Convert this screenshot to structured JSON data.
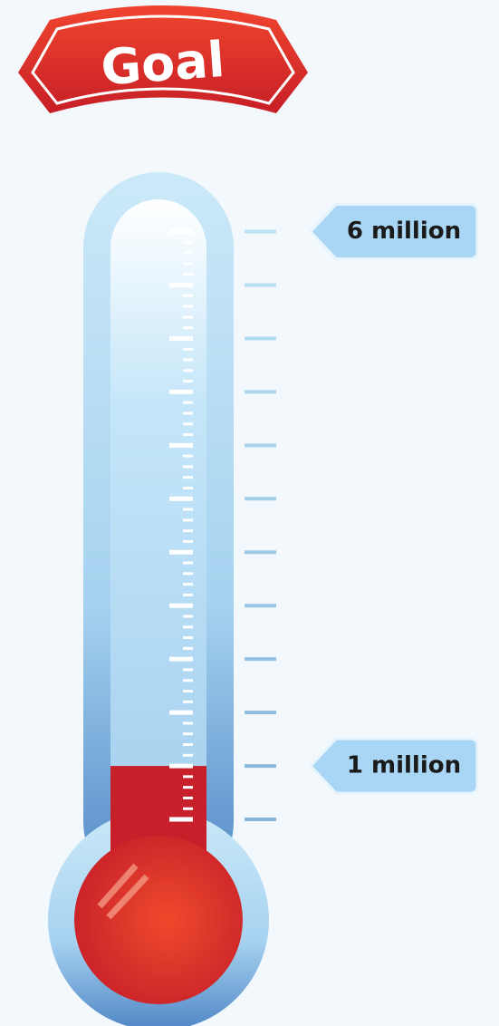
{
  "chart_data": {
    "type": "thermometer",
    "title": "Goal",
    "value": 1000000,
    "color": "#c8202a",
    "ylim": [
      0,
      6250000
    ],
    "yticks": [
      {
        "value": 6000000,
        "label": "6 million"
      },
      {
        "value": 1000000,
        "label": "1 million"
      }
    ],
    "minor_yticks": [
      500000,
      1000000,
      1500000,
      2000000,
      2500000,
      3000000,
      3500000,
      4000000,
      4500000,
      5000000,
      5500000,
      6000000
    ]
  }
}
